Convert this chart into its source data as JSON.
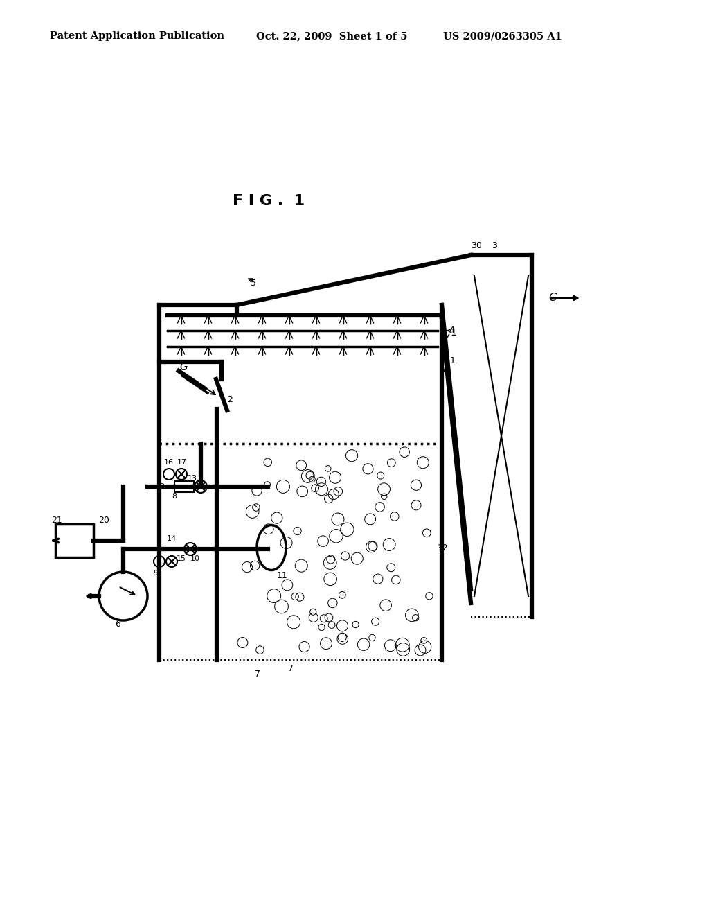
{
  "header_left": "Patent Application Publication",
  "header_mid": "Oct. 22, 2009  Sheet 1 of 5",
  "header_right": "US 2009/0263305 A1",
  "fig_label": "F I G .  1",
  "bg_color": "#ffffff",
  "line_color": "#000000"
}
